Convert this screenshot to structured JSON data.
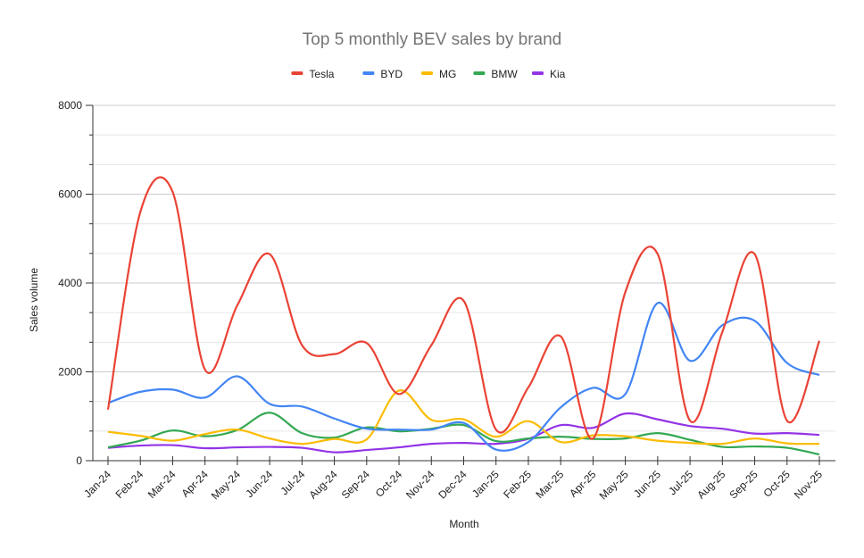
{
  "chart_data": {
    "type": "line",
    "title": "Top 5 monthly BEV sales by brand",
    "xlabel": "Month",
    "ylabel": "Sales volume",
    "ylim": [
      0,
      8000
    ],
    "yticks": [
      "0",
      "2000",
      "4000",
      "6000",
      "8000"
    ],
    "ytick_values": [
      0,
      2000,
      4000,
      6000,
      8000
    ],
    "minor_gridlines": true,
    "legend_position": "top",
    "smooth": true,
    "categories": [
      "Jan-24",
      "Feb-24",
      "Mar-24",
      "Apr-24",
      "May-24",
      "Jun-24",
      "Jul-24",
      "Aug-24",
      "Sep-24",
      "Oct-24",
      "Nov-24",
      "Dec-24",
      "Jan-25",
      "Feb-25",
      "Mar-25",
      "Apr-25",
      "May-25",
      "Jun-25",
      "Jul-25",
      "Aug-25",
      "Sep-25",
      "Oct-25",
      "Nov-25"
    ],
    "series": [
      {
        "name": "Tesla",
        "color": "#ea4335",
        "values": [
          1150,
          5600,
          6050,
          2050,
          3500,
          4650,
          2600,
          2400,
          2650,
          1500,
          2600,
          3600,
          700,
          1650,
          2800,
          500,
          3800,
          4650,
          900,
          2900,
          4650,
          900,
          2700
        ]
      },
      {
        "name": "BYD",
        "color": "#4285f4",
        "values": [
          1300,
          1550,
          1600,
          1420,
          1900,
          1280,
          1220,
          950,
          720,
          700,
          700,
          850,
          250,
          420,
          1200,
          1640,
          1500,
          3550,
          2250,
          3050,
          3150,
          2200,
          1930
        ]
      },
      {
        "name": "MG",
        "color": "#fbbc04",
        "values": [
          650,
          560,
          450,
          600,
          700,
          500,
          380,
          490,
          480,
          1580,
          920,
          930,
          540,
          890,
          420,
          570,
          550,
          450,
          400,
          380,
          500,
          390,
          380
        ]
      },
      {
        "name": "BMW",
        "color": "#34a853",
        "values": [
          300,
          450,
          680,
          550,
          690,
          1080,
          620,
          520,
          750,
          660,
          720,
          800,
          440,
          500,
          540,
          490,
          500,
          620,
          470,
          310,
          320,
          290,
          140
        ]
      },
      {
        "name": "Kia",
        "color": "#9334e6",
        "values": [
          290,
          340,
          350,
          280,
          300,
          310,
          290,
          190,
          240,
          300,
          380,
          400,
          380,
          490,
          800,
          740,
          1060,
          930,
          780,
          720,
          610,
          620,
          580
        ]
      }
    ]
  }
}
